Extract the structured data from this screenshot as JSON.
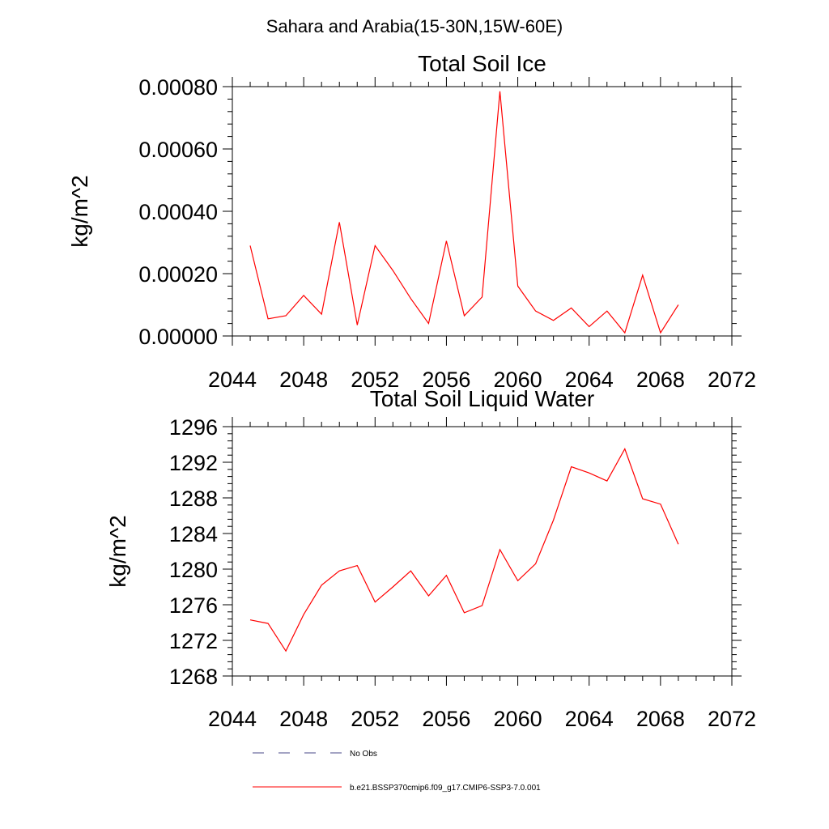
{
  "title": "Sahara and Arabia(15-30N,15W-60E)",
  "legend": [
    {
      "label": "No Obs",
      "color": "#4a4a8a",
      "dash": "dashed"
    },
    {
      "label": "b.e21.BSSP370cmip6.f09_g17.CMIP6-SSP3-7.0.001",
      "color": "#ff0000",
      "dash": "solid"
    }
  ],
  "chart_data": [
    {
      "type": "line",
      "title": "Total Soil Ice",
      "xlabel": "",
      "ylabel": "kg/m^2",
      "xlim": [
        2044,
        2072
      ],
      "ylim": [
        0,
        0.0008
      ],
      "xticks": [
        "2044",
        "2048",
        "2052",
        "2056",
        "2060",
        "2064",
        "2068",
        "2072"
      ],
      "yticks": [
        "0.00000",
        "0.00020",
        "0.00040",
        "0.00060",
        "0.00080"
      ],
      "grid": false,
      "series": [
        {
          "name": "b.e21.BSSP370cmip6.f09_g17.CMIP6-SSP3-7.0.001",
          "color": "#ff0000",
          "x": [
            2045,
            2046,
            2047,
            2048,
            2049,
            2050,
            2051,
            2052,
            2053,
            2054,
            2055,
            2056,
            2057,
            2058,
            2059,
            2060,
            2061,
            2062,
            2063,
            2064,
            2065,
            2066,
            2067,
            2068,
            2069
          ],
          "y": [
            0.00029,
            5.5e-05,
            6.5e-05,
            0.00013,
            7e-05,
            0.000365,
            3.5e-05,
            0.00029,
            0.00021,
            0.00012,
            4e-05,
            0.000305,
            6.5e-05,
            0.000125,
            0.000785,
            0.00016,
            8e-05,
            5e-05,
            9e-05,
            3e-05,
            8e-05,
            1e-05,
            0.000195,
            1e-05,
            0.0001
          ]
        }
      ]
    },
    {
      "type": "line",
      "title": "Total Soil Liquid Water",
      "xlabel": "",
      "ylabel": "kg/m^2",
      "xlim": [
        2044,
        2072
      ],
      "ylim": [
        1268,
        1296
      ],
      "xticks": [
        "2044",
        "2048",
        "2052",
        "2056",
        "2060",
        "2064",
        "2068",
        "2072"
      ],
      "yticks": [
        "1268",
        "1272",
        "1276",
        "1280",
        "1284",
        "1288",
        "1292",
        "1296"
      ],
      "grid": false,
      "series": [
        {
          "name": "b.e21.BSSP370cmip6.f09_g17.CMIP6-SSP3-7.0.001",
          "color": "#ff0000",
          "x": [
            2045,
            2046,
            2047,
            2048,
            2049,
            2050,
            2051,
            2052,
            2053,
            2054,
            2055,
            2056,
            2057,
            2058,
            2059,
            2060,
            2061,
            2062,
            2063,
            2064,
            2065,
            2066,
            2067,
            2068,
            2069
          ],
          "y": [
            1274.3,
            1273.9,
            1270.8,
            1274.9,
            1278.2,
            1279.8,
            1280.4,
            1276.3,
            1278.0,
            1279.8,
            1277.0,
            1279.3,
            1275.1,
            1275.9,
            1282.2,
            1278.7,
            1280.6,
            1285.5,
            1291.5,
            1290.8,
            1289.9,
            1293.5,
            1287.9,
            1287.3,
            1282.8
          ]
        }
      ]
    }
  ]
}
